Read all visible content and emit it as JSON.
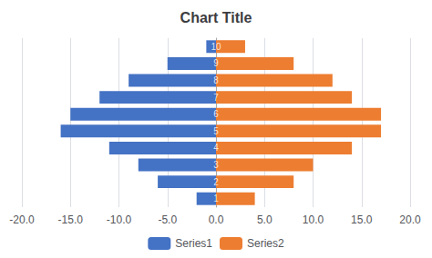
{
  "chart_data": {
    "type": "bar",
    "orientation": "horizontal",
    "title": "Chart Title",
    "categories": [
      "1",
      "2",
      "3",
      "4",
      "5",
      "6",
      "7",
      "8",
      "9",
      "10"
    ],
    "series": [
      {
        "name": "Series1",
        "color": "#4472C4",
        "values": [
          -2,
          -6,
          -8,
          -11,
          -16,
          -15,
          -12,
          -9,
          -5,
          -1
        ]
      },
      {
        "name": "Series2",
        "color": "#ED7D31",
        "values": [
          4,
          8,
          10,
          14,
          17,
          17,
          14,
          12,
          8,
          3
        ]
      }
    ],
    "xlim": [
      -20,
      20
    ],
    "xticks": [
      {
        "value": -20,
        "label": "-20.0"
      },
      {
        "value": -15,
        "label": "-15.0"
      },
      {
        "value": -10,
        "label": "-10.0"
      },
      {
        "value": -5,
        "label": "-5.0"
      },
      {
        "value": 0,
        "label": "0.0"
      },
      {
        "value": 5,
        "label": "5.0"
      },
      {
        "value": 10,
        "label": "10.0"
      },
      {
        "value": 15,
        "label": "15.0"
      },
      {
        "value": 20,
        "label": "20.0"
      }
    ],
    "grid": true,
    "legend": "bottom",
    "tick_labels": "x"
  }
}
